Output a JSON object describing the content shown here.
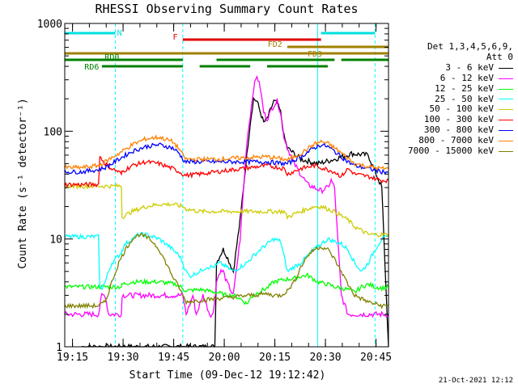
{
  "chart_data": {
    "type": "line",
    "title": "RHESSI Observing Summary Count Rates",
    "xlabel": "Start Time (09-Dec-12 19:12:42)",
    "ylabel": "Count Rate (s⁻¹ detector⁻¹)",
    "y_scale": "log",
    "ylim": [
      1,
      1000
    ],
    "xlim_minutes": [
      0,
      96
    ],
    "x_tick_minutes": [
      2.3,
      17.3,
      32.3,
      47.3,
      62.3,
      77.3,
      92.3
    ],
    "x_tick_labels": [
      "19:15",
      "19:30",
      "19:45",
      "20:00",
      "20:15",
      "20:30",
      "20:45"
    ],
    "y_tick_values": [
      1,
      10,
      100,
      1000
    ],
    "y_tick_labels": [
      "1",
      "10",
      "100",
      "1000"
    ],
    "legend": {
      "detectors": "Det 1,3,4,5,6,9,",
      "attenuator": "Att 0",
      "position": "right"
    },
    "series": [
      {
        "name": "3 - 6 keV",
        "color": "#000000",
        "x": [
          5,
          10,
          11,
          12,
          15,
          16.8,
          17,
          20,
          24,
          28,
          32,
          35,
          36,
          38,
          39,
          41,
          42,
          43,
          44,
          44.5,
          45,
          46,
          47,
          48,
          50,
          52,
          54,
          55,
          56,
          57,
          58,
          59,
          60,
          62,
          63,
          64,
          65,
          66,
          70,
          75,
          80,
          85,
          90,
          94,
          96
        ],
        "y": [
          1,
          1,
          1,
          1,
          1,
          1,
          1,
          1,
          1,
          1,
          1,
          1,
          1,
          1,
          1,
          1,
          1,
          1,
          1,
          1,
          6,
          7,
          8,
          7,
          5,
          15,
          60,
          120,
          200,
          190,
          150,
          120,
          130,
          190,
          180,
          150,
          90,
          70,
          55,
          50,
          55,
          62,
          60,
          30,
          1
        ]
      },
      {
        "name": "6 - 12 keV",
        "color": "#ff00ff",
        "x": [
          0,
          10,
          11,
          12,
          13,
          14,
          16.8,
          17,
          20,
          28,
          33,
          35,
          36,
          38,
          39,
          41,
          43,
          44,
          45,
          46,
          47,
          48,
          50,
          52,
          54,
          56,
          57,
          58,
          59,
          60,
          62,
          63,
          64,
          65,
          66,
          67,
          68,
          70,
          72,
          74,
          76,
          78,
          79,
          80,
          82,
          84,
          86,
          90,
          94,
          96
        ],
        "y": [
          2,
          2,
          3,
          3,
          2,
          2,
          2,
          3,
          3,
          3,
          3,
          3,
          2,
          3,
          2,
          3,
          2,
          2,
          4,
          5,
          5,
          4,
          3,
          10,
          80,
          250,
          330,
          250,
          150,
          130,
          175,
          190,
          150,
          90,
          70,
          60,
          50,
          40,
          32,
          30,
          28,
          30,
          35,
          30,
          3,
          2,
          2,
          2,
          2,
          2
        ]
      },
      {
        "name": "12 - 25 keV",
        "color": "#00ff00",
        "x": [
          0,
          5,
          10,
          16.8,
          17,
          20,
          28,
          33,
          35,
          36,
          40,
          45,
          48,
          50,
          52,
          54,
          55,
          56,
          58,
          60,
          62,
          65,
          68,
          70,
          72,
          74,
          75,
          78,
          80,
          82,
          84,
          86,
          88,
          90,
          92,
          94,
          96
        ],
        "y": [
          3.6,
          3.6,
          3.6,
          3.6,
          3.8,
          4,
          4,
          3.8,
          3.5,
          3.3,
          3.4,
          3.2,
          3,
          3,
          2.8,
          2.5,
          2.8,
          3,
          3.3,
          3.5,
          4,
          4.2,
          4.3,
          4.5,
          4.6,
          4.2,
          4,
          3.8,
          3.6,
          3.5,
          3.4,
          3.2,
          3.6,
          3.8,
          3.6,
          3.5,
          3.6
        ]
      },
      {
        "name": "25 - 50 keV",
        "color": "#00ffff",
        "x": [
          0,
          5,
          10,
          10.4,
          11,
          12,
          13,
          14,
          15,
          16,
          16.8,
          17,
          18,
          19,
          20,
          22,
          24,
          26,
          28,
          30,
          32,
          34,
          35,
          36,
          37,
          40,
          42,
          44,
          46,
          48,
          50,
          52,
          54,
          56,
          58,
          60,
          62,
          64,
          65,
          66,
          68,
          70,
          72,
          74,
          76,
          78,
          80,
          82,
          84,
          86,
          88,
          90,
          92,
          94,
          96
        ],
        "y": [
          10.5,
          10.5,
          10.5,
          3.5,
          3.5,
          4,
          5,
          6,
          6.5,
          7,
          7.5,
          8,
          9,
          9.5,
          10,
          11,
          11,
          10.5,
          10,
          9,
          8,
          7,
          6,
          5,
          4.5,
          5,
          5.5,
          5.5,
          6,
          5.5,
          5,
          5.5,
          6,
          7,
          8,
          9,
          10,
          9.5,
          7,
          5,
          5.5,
          6,
          7,
          8,
          9,
          10,
          9.5,
          9,
          8,
          6,
          5,
          6,
          8,
          10,
          10.5
        ]
      },
      {
        "name": "50 - 100 keV",
        "color": "#cccc00",
        "x": [
          0,
          5,
          10,
          16.8,
          17,
          20,
          24,
          28,
          32,
          35,
          36,
          40,
          45,
          50,
          55,
          60,
          65,
          66,
          68,
          70,
          72,
          74,
          76,
          78,
          80,
          84,
          86,
          88,
          90,
          92,
          94,
          96
        ],
        "y": [
          31,
          31,
          31,
          31,
          16,
          18,
          20,
          21,
          21,
          20,
          19,
          18,
          18,
          18,
          18,
          18,
          18,
          16,
          17,
          18,
          19,
          20,
          20,
          19,
          18,
          15,
          13,
          12,
          11,
          11,
          11,
          11
        ]
      },
      {
        "name": "100 - 300 keV",
        "color": "#ff0000",
        "x": [
          0,
          5,
          10,
          10.4,
          11,
          12,
          14,
          16,
          16.8,
          17,
          18,
          20,
          24,
          28,
          32,
          34,
          35,
          36,
          40,
          45,
          50,
          55,
          60,
          65,
          66,
          70,
          74,
          76,
          78,
          80,
          82,
          84,
          86,
          90,
          94,
          96
        ],
        "y": [
          32,
          32,
          32,
          58,
          55,
          50,
          45,
          42,
          40,
          42,
          44,
          48,
          52,
          50,
          45,
          42,
          40,
          39,
          40,
          42,
          44,
          46,
          48,
          45,
          40,
          45,
          48,
          46,
          44,
          42,
          38,
          45,
          40,
          38,
          35,
          35
        ]
      },
      {
        "name": "300 - 800 keV",
        "color": "#0000ff",
        "x": [
          0,
          5,
          10,
          12,
          14,
          16,
          18,
          20,
          24,
          28,
          32,
          34,
          35,
          36,
          40,
          45,
          50,
          55,
          60,
          65,
          66,
          70,
          74,
          76,
          78,
          80,
          82,
          84,
          86,
          90,
          94,
          96
        ],
        "y": [
          42,
          42,
          44,
          46,
          50,
          55,
          60,
          65,
          72,
          75,
          70,
          62,
          55,
          52,
          52,
          52,
          52,
          52,
          52,
          50,
          50,
          58,
          70,
          75,
          72,
          65,
          58,
          52,
          48,
          45,
          42,
          42
        ]
      },
      {
        "name": "800 - 7000 keV",
        "color": "#ff8000",
        "x": [
          0,
          5,
          10,
          12,
          14,
          16,
          18,
          20,
          24,
          28,
          32,
          34,
          35,
          36,
          40,
          45,
          50,
          55,
          60,
          65,
          66,
          70,
          74,
          76,
          78,
          80,
          82,
          84,
          86,
          90,
          94,
          96
        ],
        "y": [
          46,
          46,
          48,
          52,
          57,
          62,
          68,
          75,
          85,
          88,
          80,
          68,
          60,
          55,
          55,
          55,
          56,
          57,
          58,
          55,
          54,
          62,
          76,
          80,
          77,
          70,
          63,
          56,
          50,
          47,
          45,
          45
        ]
      },
      {
        "name": "7000 - 15000 keV",
        "color": "#808000",
        "x": [
          0,
          5,
          10,
          12,
          14,
          16,
          18,
          20,
          22,
          24,
          26,
          28,
          30,
          32,
          34,
          35,
          36,
          40,
          45,
          50,
          55,
          60,
          62,
          64,
          66,
          68,
          70,
          72,
          74,
          76,
          78,
          80,
          82,
          84,
          86,
          90,
          94,
          96
        ],
        "y": [
          2.4,
          2.4,
          2.4,
          2.6,
          4,
          6,
          8,
          10,
          11,
          10.5,
          9.5,
          8,
          6,
          4.5,
          3.5,
          3,
          2.6,
          2.7,
          2.8,
          2.9,
          3,
          3.1,
          3,
          3,
          3.3,
          4,
          5.5,
          7,
          8,
          8.5,
          8,
          6.5,
          5,
          3.8,
          3,
          2.6,
          2.4,
          2.4
        ]
      }
    ],
    "annotations": {
      "bars": [
        {
          "label": "N",
          "color": "#00e0e0",
          "segments": [
            [
              0,
              15
            ],
            [
              76,
              92
            ]
          ]
        },
        {
          "label": "F",
          "color": "#e00000",
          "segments": [
            [
              35,
              76
            ]
          ]
        },
        {
          "label": "FD2",
          "color": "#a08000",
          "segments": [
            [
              66,
              96
            ]
          ]
        },
        {
          "label": "FD3",
          "color": "#a08000",
          "segments": [
            [
              0,
              96
            ]
          ]
        },
        {
          "label": "RD0",
          "color": "#008000",
          "segments": [
            [
              0,
              35
            ],
            [
              45,
              80
            ],
            [
              82,
              96
            ]
          ]
        },
        {
          "label": "RD6",
          "color": "#008000",
          "segments": [
            [
              11,
              35
            ],
            [
              40,
              55
            ],
            [
              60,
              78
            ]
          ]
        }
      ],
      "vertical_lines_minutes": [
        15,
        35,
        75,
        92
      ],
      "vertical_lines_color": "#00ffff"
    }
  },
  "timestamp": "21-Oct-2021 12:12"
}
